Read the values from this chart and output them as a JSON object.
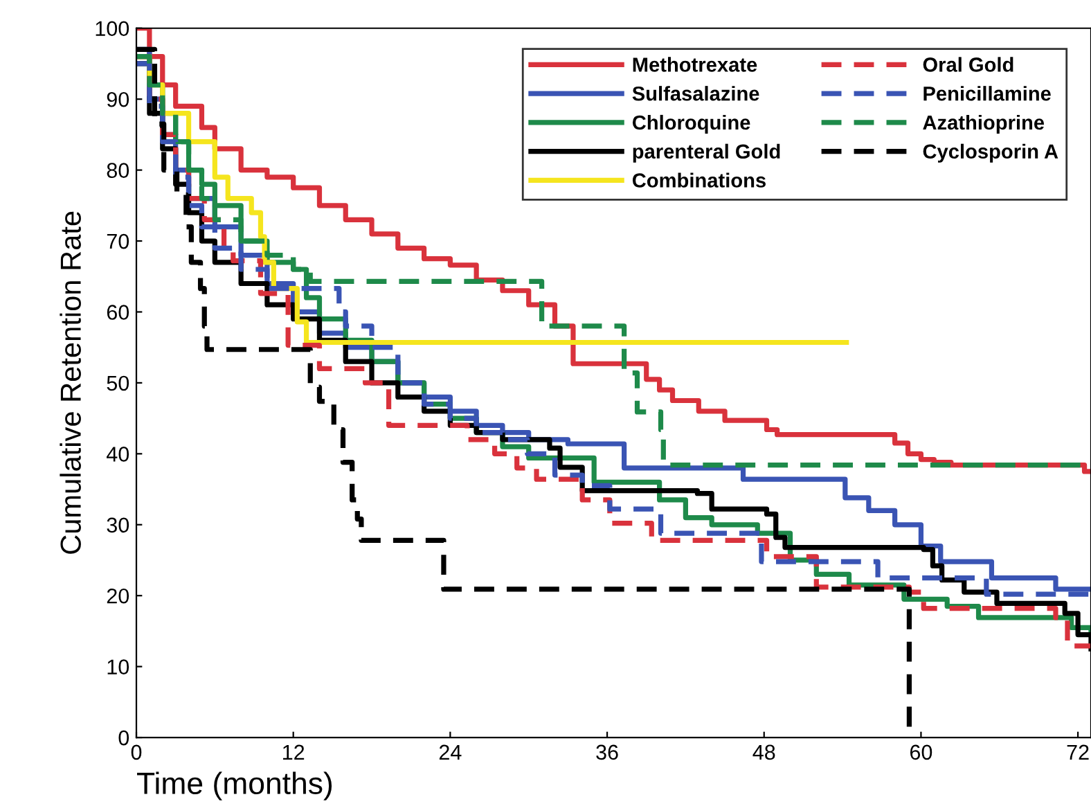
{
  "chart_data": {
    "type": "step",
    "xlabel": "Time (months)",
    "ylabel": "Cumulative Retention Rate",
    "xlim": [
      0,
      73
    ],
    "ylim": [
      0,
      100
    ],
    "xticks": [
      0,
      12,
      24,
      36,
      48,
      60,
      72
    ],
    "yticks": [
      0,
      10,
      20,
      30,
      40,
      50,
      60,
      70,
      80,
      90,
      100
    ],
    "grid": false,
    "legend": "top right",
    "marker": "none",
    "series": [
      {
        "name": "Methotrexate",
        "color": "#d9323c",
        "line_style": "solid",
        "x": [
          0,
          1,
          2,
          3,
          5,
          6,
          8,
          10,
          12,
          14,
          16,
          18,
          20,
          22,
          24,
          26,
          28,
          30,
          32,
          33.4,
          39,
          40,
          41,
          43,
          45,
          48.2,
          49,
          52,
          58,
          59,
          60,
          61,
          62.3,
          72.5,
          73
        ],
        "values": [
          100,
          96,
          92,
          89,
          86,
          83,
          80,
          79,
          77.5,
          75,
          73,
          71,
          69,
          67.5,
          66.6,
          64.5,
          63,
          61,
          58,
          52.7,
          50.5,
          49,
          47.5,
          46,
          44.7,
          43.4,
          42.7,
          42.7,
          41.5,
          40,
          39.2,
          38.8,
          38.4,
          37.5,
          37.5
        ]
      },
      {
        "name": "Sulfasalazine",
        "color": "#3a54b4",
        "line_style": "solid",
        "x": [
          0,
          1,
          2,
          3,
          4,
          6,
          8,
          10,
          12,
          14,
          16,
          18,
          20,
          22,
          24,
          26,
          28,
          30,
          33,
          37.3,
          46.4,
          54.2,
          56,
          58,
          60,
          61.5,
          65.4,
          70.3,
          73
        ],
        "values": [
          97,
          90,
          85,
          80,
          76,
          72,
          68,
          64,
          60,
          57,
          55,
          53,
          50,
          48,
          46,
          44,
          43,
          42,
          41.4,
          38,
          36.4,
          33.8,
          32,
          30,
          27,
          24.8,
          22.5,
          20.9,
          20.9
        ]
      },
      {
        "name": "Chloroquine",
        "color": "#1e8a4a",
        "line_style": "solid",
        "x": [
          0,
          1,
          2,
          3,
          4,
          5,
          6,
          8,
          10,
          12,
          13,
          14,
          16,
          18,
          20,
          22,
          24,
          26,
          28,
          30,
          35,
          40,
          42,
          44,
          47.5,
          50,
          52,
          54.5,
          58.7,
          62,
          64.4,
          70.3,
          71.5,
          73
        ],
        "values": [
          96,
          92,
          88,
          84,
          80,
          78,
          75,
          70,
          67,
          66,
          62,
          59,
          56,
          53,
          50,
          47,
          45,
          43,
          41,
          39.4,
          36,
          33.5,
          31,
          30,
          28.8,
          25,
          23,
          21.5,
          19.5,
          18.5,
          16.9,
          16.9,
          15.5,
          15
        ]
      },
      {
        "name": "parenteral Gold",
        "color": "#000000",
        "line_style": "solid",
        "x": [
          0,
          1,
          2,
          3,
          4,
          5,
          6,
          8,
          10,
          12,
          14,
          16,
          18,
          20,
          22,
          24,
          26,
          28,
          31.6,
          32.4,
          34.1,
          42.9,
          44,
          48.2,
          48.9,
          49.6,
          60.2,
          60.9,
          61.6,
          63.3,
          65.8,
          71,
          72,
          73
        ],
        "values": [
          95,
          88,
          83,
          78,
          74,
          70,
          67,
          64,
          61,
          59,
          56,
          53,
          50,
          48,
          46,
          44,
          43,
          42,
          40.8,
          38.1,
          34.8,
          34.4,
          32.2,
          31.5,
          28.2,
          26.8,
          26.5,
          24.2,
          22.2,
          20.5,
          18.9,
          17.5,
          14.5,
          12.5
        ]
      },
      {
        "name": "Combinations",
        "color": "#f5e51e",
        "line_style": "solid",
        "x": [
          0,
          1,
          2,
          4,
          6,
          7,
          8.8,
          9.5,
          9.8,
          10.5,
          12.3,
          13,
          54.3
        ],
        "values": [
          96,
          92,
          88,
          84,
          79,
          76,
          74,
          70.6,
          67,
          63.3,
          58.6,
          55.7,
          55.7
        ]
      },
      {
        "name": "Oral Gold",
        "color": "#d9323c",
        "line_style": "dashed",
        "x": [
          0,
          1,
          2,
          3,
          4,
          5.2,
          6.7,
          7.4,
          9.5,
          11.6,
          14,
          17.5,
          19.3,
          25.3,
          27.4,
          29.1,
          30.6,
          34.1,
          36.2,
          39.4,
          48.2,
          52,
          59.1,
          60.2,
          70.3,
          71.2,
          73
        ],
        "values": [
          96,
          90,
          85,
          80,
          76,
          73,
          68.6,
          67.2,
          62.6,
          55.3,
          52,
          50,
          44,
          42,
          40,
          38,
          36.4,
          33.5,
          30.2,
          27.8,
          25.5,
          21.2,
          20.5,
          18.2,
          16.9,
          12.9,
          12.9
        ]
      },
      {
        "name": "Penicillamine",
        "color": "#3a54b4",
        "line_style": "dashed",
        "x": [
          0,
          1,
          2,
          3,
          4,
          5,
          6,
          8,
          10,
          15.5,
          16,
          18,
          20,
          22,
          24,
          26,
          28,
          29.9,
          32,
          34.1,
          36.2,
          40.1,
          47.8,
          56.7,
          65,
          73
        ],
        "values": [
          95,
          89,
          84,
          79,
          75,
          72,
          69,
          66,
          63.3,
          60,
          58,
          55,
          50,
          47,
          45,
          43,
          42,
          40,
          37,
          35.5,
          32.2,
          28.8,
          24.8,
          22.5,
          20.2,
          20.2
        ]
      },
      {
        "name": "Azathioprine",
        "color": "#1e8a4a",
        "line_style": "dashed",
        "x": [
          0,
          1,
          2,
          3,
          4,
          5,
          6,
          8,
          10,
          12,
          13.3,
          31,
          37.3,
          38.3,
          40.1,
          40.3,
          73
        ],
        "values": [
          96,
          92,
          88,
          84,
          80,
          76,
          73,
          70,
          68,
          66,
          64.3,
          58,
          51.4,
          45.9,
          43.4,
          38.4,
          38.4
        ]
      },
      {
        "name": "Cyclosporin A",
        "color": "#000000",
        "line_style": "dashed",
        "x": [
          0,
          1.4,
          2.1,
          3.1,
          3.8,
          4.2,
          4.9,
          5.2,
          5.4,
          13.3,
          14,
          15.1,
          15.8,
          16.5,
          16.9,
          17.2,
          23.5,
          59.1
        ],
        "values": [
          97,
          86.5,
          80,
          76.5,
          72,
          67,
          63.3,
          58,
          54.7,
          49.4,
          47.4,
          43.4,
          38.8,
          33.5,
          30.8,
          27.8,
          20.9,
          0
        ]
      }
    ]
  }
}
